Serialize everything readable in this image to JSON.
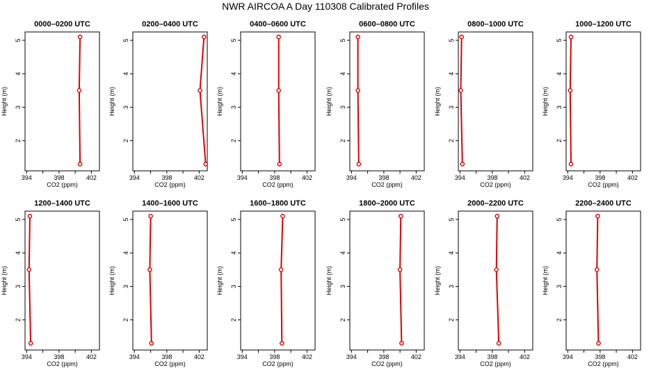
{
  "title": "NWR AIRCOA A  Day 110308  Calibrated Profiles",
  "chart_data": {
    "type": "line",
    "xlabel": "CO2 (ppm)",
    "ylabel": "Height (m)",
    "xlim": [
      393.8,
      403
    ],
    "ylim": [
      1.1,
      5.25
    ],
    "x_ticks": [
      394,
      396,
      398,
      400,
      402
    ],
    "x_tick_labels": [
      "394",
      "398",
      "402"
    ],
    "y_ticks": [
      2,
      3,
      4,
      5
    ],
    "series_color": "#dd0000",
    "panels": [
      {
        "title": "0000–0200 UTC",
        "heights": [
          1.3,
          3.5,
          5.1
        ],
        "co2": [
          400.6,
          400.5,
          400.6
        ]
      },
      {
        "title": "0200–0400 UTC",
        "heights": [
          1.3,
          3.5,
          5.1
        ],
        "co2": [
          402.8,
          402.1,
          402.6
        ]
      },
      {
        "title": "0400–0600 UTC",
        "heights": [
          1.3,
          3.5,
          5.1
        ],
        "co2": [
          398.6,
          398.5,
          398.5
        ]
      },
      {
        "title": "0600–0800 UTC",
        "heights": [
          1.3,
          3.5,
          5.1
        ],
        "co2": [
          394.9,
          394.8,
          394.8
        ]
      },
      {
        "title": "0800–1000 UTC",
        "heights": [
          1.3,
          3.5,
          5.1
        ],
        "co2": [
          394.3,
          394.1,
          394.2
        ]
      },
      {
        "title": "1000–1200 UTC",
        "heights": [
          1.3,
          3.5,
          5.1
        ],
        "co2": [
          394.4,
          394.3,
          394.4
        ]
      },
      {
        "title": "1200–1400 UTC",
        "heights": [
          1.3,
          3.5,
          5.1
        ],
        "co2": [
          394.5,
          394.3,
          394.4
        ]
      },
      {
        "title": "1400–1600 UTC",
        "heights": [
          1.3,
          3.5,
          5.1
        ],
        "co2": [
          396.1,
          395.9,
          396.0
        ]
      },
      {
        "title": "1600–1800 UTC",
        "heights": [
          1.3,
          3.5,
          5.1
        ],
        "co2": [
          398.9,
          398.8,
          399.0
        ]
      },
      {
        "title": "1800–2000 UTC",
        "heights": [
          1.3,
          3.5,
          5.1
        ],
        "co2": [
          400.2,
          400.0,
          400.1
        ]
      },
      {
        "title": "2000–2200 UTC",
        "heights": [
          1.3,
          3.5,
          5.1
        ],
        "co2": [
          398.8,
          398.5,
          398.6
        ]
      },
      {
        "title": "2200–2400 UTC",
        "heights": [
          1.3,
          3.5,
          5.1
        ],
        "co2": [
          397.8,
          397.6,
          397.7
        ]
      }
    ]
  }
}
